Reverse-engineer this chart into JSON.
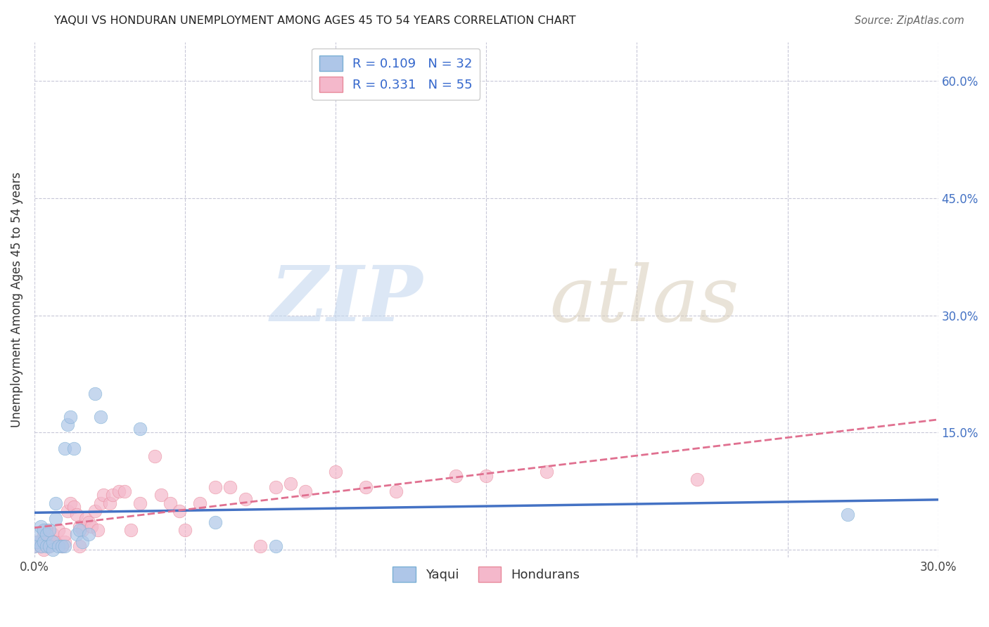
{
  "title": "YAQUI VS HONDURAN UNEMPLOYMENT AMONG AGES 45 TO 54 YEARS CORRELATION CHART",
  "source": "Source: ZipAtlas.com",
  "ylabel": "Unemployment Among Ages 45 to 54 years",
  "xlim": [
    0.0,
    0.3
  ],
  "ylim": [
    -0.01,
    0.65
  ],
  "yticks": [
    0.0,
    0.15,
    0.3,
    0.45,
    0.6
  ],
  "xticks": [
    0.0,
    0.05,
    0.1,
    0.15,
    0.2,
    0.25,
    0.3
  ],
  "right_ytick_labels": [
    "",
    "15.0%",
    "30.0%",
    "45.0%",
    "60.0%"
  ],
  "xtick_labels": [
    "0.0%",
    "",
    "",
    "",
    "",
    "",
    "30.0%"
  ],
  "yaqui_fill_color": "#aec6e8",
  "yaqui_edge_color": "#7aafd4",
  "honduran_fill_color": "#f4b8cb",
  "honduran_edge_color": "#e8899a",
  "yaqui_line_color": "#4472c4",
  "honduran_line_color": "#e07090",
  "legend_label_1": "R = 0.109   N = 32",
  "legend_label_2": "R = 0.331   N = 55",
  "legend_bottom_1": "Yaqui",
  "legend_bottom_2": "Hondurans",
  "background_color": "#ffffff",
  "yaqui_x": [
    0.0,
    0.001,
    0.001,
    0.002,
    0.002,
    0.003,
    0.003,
    0.004,
    0.004,
    0.005,
    0.005,
    0.006,
    0.006,
    0.007,
    0.007,
    0.008,
    0.009,
    0.01,
    0.01,
    0.011,
    0.012,
    0.013,
    0.014,
    0.015,
    0.016,
    0.018,
    0.02,
    0.022,
    0.035,
    0.06,
    0.08,
    0.27
  ],
  "yaqui_y": [
    0.005,
    0.01,
    0.02,
    0.005,
    0.03,
    0.025,
    0.01,
    0.005,
    0.02,
    0.005,
    0.025,
    0.0,
    0.01,
    0.06,
    0.04,
    0.005,
    0.005,
    0.005,
    0.13,
    0.16,
    0.17,
    0.13,
    0.02,
    0.025,
    0.01,
    0.02,
    0.2,
    0.17,
    0.155,
    0.035,
    0.005,
    0.045
  ],
  "honduran_x": [
    0.0,
    0.001,
    0.002,
    0.003,
    0.003,
    0.004,
    0.004,
    0.005,
    0.005,
    0.006,
    0.007,
    0.008,
    0.009,
    0.01,
    0.01,
    0.011,
    0.012,
    0.013,
    0.014,
    0.015,
    0.015,
    0.016,
    0.017,
    0.018,
    0.019,
    0.02,
    0.021,
    0.022,
    0.023,
    0.025,
    0.026,
    0.028,
    0.03,
    0.032,
    0.035,
    0.04,
    0.042,
    0.045,
    0.048,
    0.05,
    0.055,
    0.06,
    0.065,
    0.07,
    0.075,
    0.08,
    0.085,
    0.09,
    0.1,
    0.11,
    0.12,
    0.14,
    0.15,
    0.17,
    0.22
  ],
  "honduran_y": [
    0.005,
    0.01,
    0.005,
    0.0,
    0.02,
    0.025,
    0.015,
    0.01,
    0.005,
    0.02,
    0.01,
    0.025,
    0.005,
    0.01,
    0.02,
    0.05,
    0.06,
    0.055,
    0.045,
    0.005,
    0.03,
    0.025,
    0.04,
    0.035,
    0.03,
    0.05,
    0.025,
    0.06,
    0.07,
    0.06,
    0.07,
    0.075,
    0.075,
    0.025,
    0.06,
    0.12,
    0.07,
    0.06,
    0.05,
    0.025,
    0.06,
    0.08,
    0.08,
    0.065,
    0.005,
    0.08,
    0.085,
    0.075,
    0.1,
    0.08,
    0.075,
    0.095,
    0.095,
    0.1,
    0.09
  ]
}
